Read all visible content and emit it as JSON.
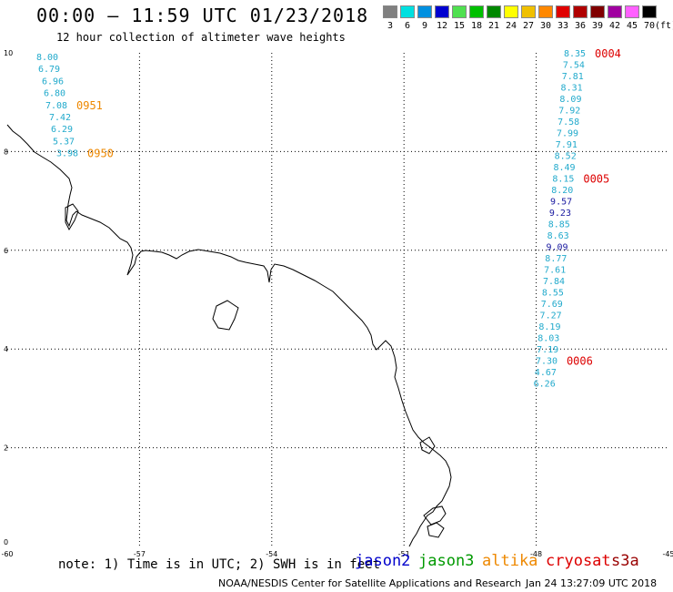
{
  "header": {
    "title": "00:00 – 11:59 UTC 01/23/2018",
    "subtitle": "12 hour collection of altimeter wave heights"
  },
  "legend": {
    "unit": "(ft)",
    "bins": [
      {
        "label": "3",
        "color": "#808080"
      },
      {
        "label": "6",
        "color": "#00e0e0"
      },
      {
        "label": "9",
        "color": "#0090e0"
      },
      {
        "label": "12",
        "color": "#0000d0"
      },
      {
        "label": "15",
        "color": "#50e050"
      },
      {
        "label": "18",
        "color": "#00c000"
      },
      {
        "label": "21",
        "color": "#008800"
      },
      {
        "label": "24",
        "color": "#ffff00"
      },
      {
        "label": "27",
        "color": "#f0c000"
      },
      {
        "label": "30",
        "color": "#ff8800"
      },
      {
        "label": "33",
        "color": "#e00000"
      },
      {
        "label": "36",
        "color": "#b00000"
      },
      {
        "label": "39",
        "color": "#800000"
      },
      {
        "label": "42",
        "color": "#a000a0"
      },
      {
        "label": "45",
        "color": "#ff60ff"
      },
      {
        "label": "70",
        "color": "#000000"
      }
    ]
  },
  "axes": {
    "x_ticks": [
      "-60",
      "-57",
      "-54",
      "-51",
      "-48",
      "-45"
    ],
    "y_ticks": [
      "0",
      "2",
      "4",
      "6",
      "8",
      "10"
    ],
    "lon_range": [
      -60,
      -45
    ],
    "lat_range": [
      0,
      10
    ]
  },
  "colors": {
    "cyan": "#22aacc",
    "darkblue": "#1a1aa0",
    "orange": "#ee8800",
    "red": "#dd0000"
  },
  "tracks": [
    {
      "name": "left-track",
      "points": [
        {
          "v": "8.00",
          "c": "cyan"
        },
        {
          "v": "6.79",
          "c": "cyan"
        },
        {
          "v": "6.96",
          "c": "cyan"
        },
        {
          "v": "6.80",
          "c": "cyan"
        },
        {
          "v": "7.08",
          "c": "cyan"
        },
        {
          "v": "7.42",
          "c": "cyan"
        },
        {
          "v": "6.29",
          "c": "cyan"
        },
        {
          "v": "5.37",
          "c": "cyan"
        },
        {
          "v": "3.98",
          "c": "cyan"
        }
      ],
      "time_labels": [
        {
          "text": "0951",
          "c": "orange",
          "row": 4
        },
        {
          "text": "0950",
          "c": "orange",
          "row": 8
        }
      ]
    },
    {
      "name": "right-track",
      "points": [
        {
          "v": "8.35",
          "c": "cyan"
        },
        {
          "v": "7.54",
          "c": "cyan"
        },
        {
          "v": "7.81",
          "c": "cyan"
        },
        {
          "v": "8.31",
          "c": "cyan"
        },
        {
          "v": "8.09",
          "c": "cyan"
        },
        {
          "v": "7.92",
          "c": "cyan"
        },
        {
          "v": "7.58",
          "c": "cyan"
        },
        {
          "v": "7.99",
          "c": "cyan"
        },
        {
          "v": "7.91",
          "c": "cyan"
        },
        {
          "v": "8.52",
          "c": "cyan"
        },
        {
          "v": "8.49",
          "c": "cyan"
        },
        {
          "v": "8.15",
          "c": "cyan"
        },
        {
          "v": "8.20",
          "c": "cyan"
        },
        {
          "v": "9.57",
          "c": "darkblue"
        },
        {
          "v": "9.23",
          "c": "darkblue"
        },
        {
          "v": "8.85",
          "c": "cyan"
        },
        {
          "v": "8.63",
          "c": "cyan"
        },
        {
          "v": "9.09",
          "c": "darkblue"
        },
        {
          "v": "8.77",
          "c": "cyan"
        },
        {
          "v": "7.61",
          "c": "cyan"
        },
        {
          "v": "7.84",
          "c": "cyan"
        },
        {
          "v": "8.55",
          "c": "cyan"
        },
        {
          "v": "7.69",
          "c": "cyan"
        },
        {
          "v": "7.27",
          "c": "cyan"
        },
        {
          "v": "8.19",
          "c": "cyan"
        },
        {
          "v": "8.03",
          "c": "cyan"
        },
        {
          "v": "7.19",
          "c": "cyan"
        },
        {
          "v": "7.30",
          "c": "cyan"
        },
        {
          "v": "4.67",
          "c": "cyan"
        },
        {
          "v": "6.26",
          "c": "cyan"
        }
      ],
      "time_labels": [
        {
          "text": "0004",
          "c": "red",
          "row": 0
        },
        {
          "text": "0005",
          "c": "red",
          "row": 11
        },
        {
          "text": "0006",
          "c": "red",
          "row": 27
        }
      ]
    }
  ],
  "footer": {
    "note": "note: 1) Time is in UTC; 2) SWH is in feet",
    "satellites": [
      {
        "name": "jason2",
        "color": "#0000cc"
      },
      {
        "name": "jason3",
        "color": "#009900"
      },
      {
        "name": "altika",
        "color": "#ee8800"
      },
      {
        "name": "cryosat",
        "color": "#dd0000"
      },
      {
        "name": "s3a",
        "color": "#990000"
      }
    ],
    "credit": "NOAA/NESDIS Center for Satellite Applications and Research",
    "timestamp": "Jan 24 13:27:09 UTC 2018"
  }
}
